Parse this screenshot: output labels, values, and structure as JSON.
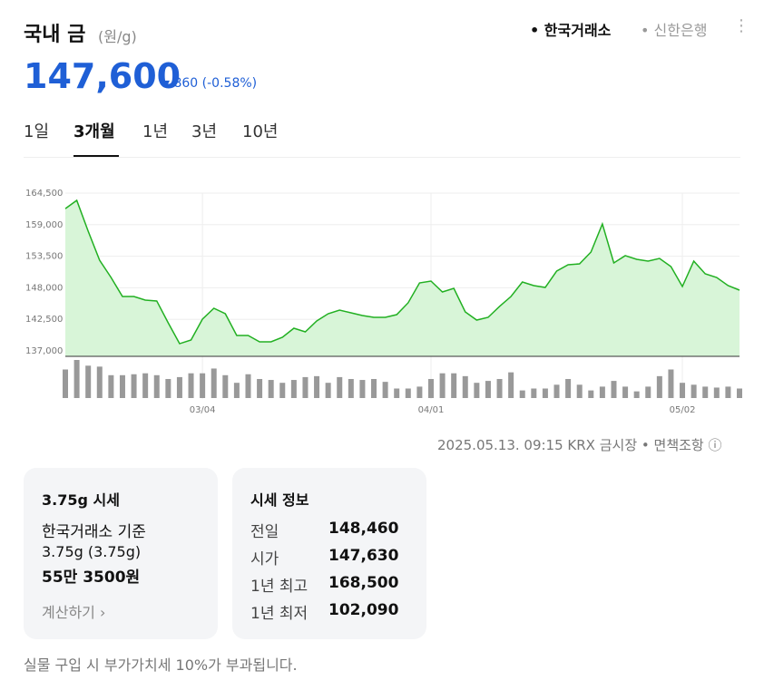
{
  "header": {
    "title": "국내 금",
    "unit": "(원/g)",
    "sources": [
      "한국거래소",
      "신한은행"
    ],
    "price": "147,600",
    "change": "860",
    "change_pct": "(-0.58%)"
  },
  "tabs": [
    "1일",
    "3개월",
    "1년",
    "3년",
    "10년"
  ],
  "chart_data": {
    "type": "line",
    "color": "#22b022",
    "fill": "#d8f5d8",
    "grid": true,
    "yticks": [
      {
        "value": 164500,
        "label": "164,500"
      },
      {
        "value": 159000,
        "label": "159,000"
      },
      {
        "value": 153500,
        "label": "153,500"
      },
      {
        "value": 148000,
        "label": "148,000"
      },
      {
        "value": 142500,
        "label": "142,500"
      },
      {
        "value": 137000,
        "label": "137,000"
      }
    ],
    "ylim": [
      137000,
      164500
    ],
    "categories": [
      null,
      null,
      null,
      null,
      null,
      null,
      null,
      null,
      null,
      null,
      null,
      null,
      "03/04",
      null,
      null,
      null,
      null,
      null,
      null,
      null,
      null,
      null,
      null,
      null,
      null,
      null,
      null,
      null,
      null,
      null,
      null,
      null,
      "04/01",
      null,
      null,
      null,
      null,
      null,
      null,
      null,
      null,
      null,
      null,
      null,
      null,
      null,
      null,
      null,
      null,
      null,
      null,
      null,
      null,
      null,
      "05/02",
      null,
      null,
      null,
      null,
      null
    ],
    "values": [
      161800,
      163240,
      157860,
      152800,
      149800,
      146480,
      146480,
      145850,
      145700,
      141900,
      138260,
      138900,
      142530,
      144430,
      143480,
      139690,
      139690,
      138580,
      138580,
      139370,
      140950,
      140320,
      142220,
      143480,
      144110,
      143640,
      143160,
      142850,
      142850,
      143320,
      145380,
      148850,
      149170,
      147270,
      147900,
      143800,
      142370,
      142850,
      144750,
      146480,
      149010,
      148380,
      148060,
      150910,
      152010,
      152170,
      154230,
      159130,
      152330,
      153600,
      152960,
      152650,
      153120,
      151700,
      148220,
      152650,
      150430,
      149800,
      148380,
      147590
    ],
    "volume": [
      30,
      40,
      34,
      33,
      24,
      24,
      25,
      26,
      24,
      20,
      22,
      26,
      26,
      31,
      24,
      16,
      25,
      20,
      19,
      16,
      19,
      22,
      23,
      16,
      22,
      20,
      19,
      20,
      17,
      10,
      10,
      12,
      20,
      26,
      26,
      23,
      16,
      18,
      20,
      27,
      8,
      10,
      10,
      14,
      20,
      14,
      8,
      12,
      18,
      12,
      7,
      12,
      23,
      30,
      16,
      14,
      12,
      11,
      12,
      10
    ]
  },
  "timestamp": "2025.05.13. 09:15 KRX 금시장",
  "disclaimer": "면책조항",
  "card1": {
    "title": "3.75g 시세",
    "line1": "한국거래소 기준",
    "line2": "3.75g (3.75g)",
    "price": "55만 3500원",
    "link": "계산하기"
  },
  "card2": {
    "title": "시세 정보",
    "rows": [
      [
        "전일",
        "148,460"
      ],
      [
        "시가",
        "147,630"
      ],
      [
        "1년 최고",
        "168,500"
      ],
      [
        "1년 최저",
        "102,090"
      ]
    ]
  },
  "footer": "실물 구입 시 부가가치세 10%가 부과됩니다."
}
